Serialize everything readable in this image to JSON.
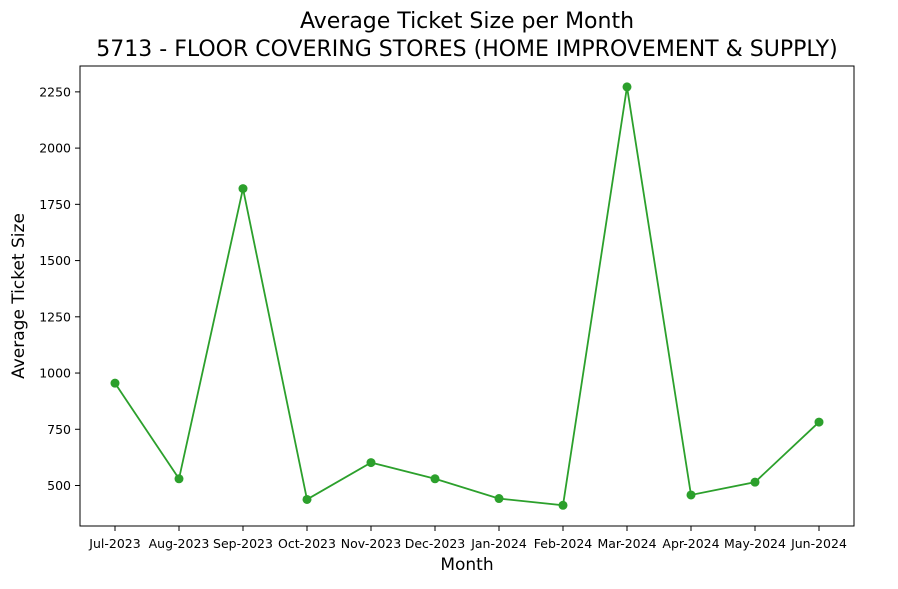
{
  "chart_data": {
    "type": "line",
    "title": "Average Ticket Size per Month",
    "subtitle": "5713 - FLOOR COVERING STORES (HOME IMPROVEMENT & SUPPLY)",
    "xlabel": "Month",
    "ylabel": "Average Ticket Size",
    "categories": [
      "Jul-2023",
      "Aug-2023",
      "Sep-2023",
      "Oct-2023",
      "Nov-2023",
      "Dec-2023",
      "Jan-2024",
      "Feb-2024",
      "Mar-2024",
      "Apr-2024",
      "May-2024",
      "Jun-2024"
    ],
    "series": [
      {
        "values": [
          955,
          530,
          1820,
          438,
          602,
          530,
          442,
          412,
          2272,
          458,
          515,
          782
        ],
        "color": "#2ca02c",
        "marker": "circle"
      }
    ],
    "yticks": [
      500,
      750,
      1000,
      1250,
      1500,
      1750,
      2000,
      2250
    ],
    "ylim": [
      320,
      2365
    ],
    "grid": false,
    "legend": "none"
  }
}
